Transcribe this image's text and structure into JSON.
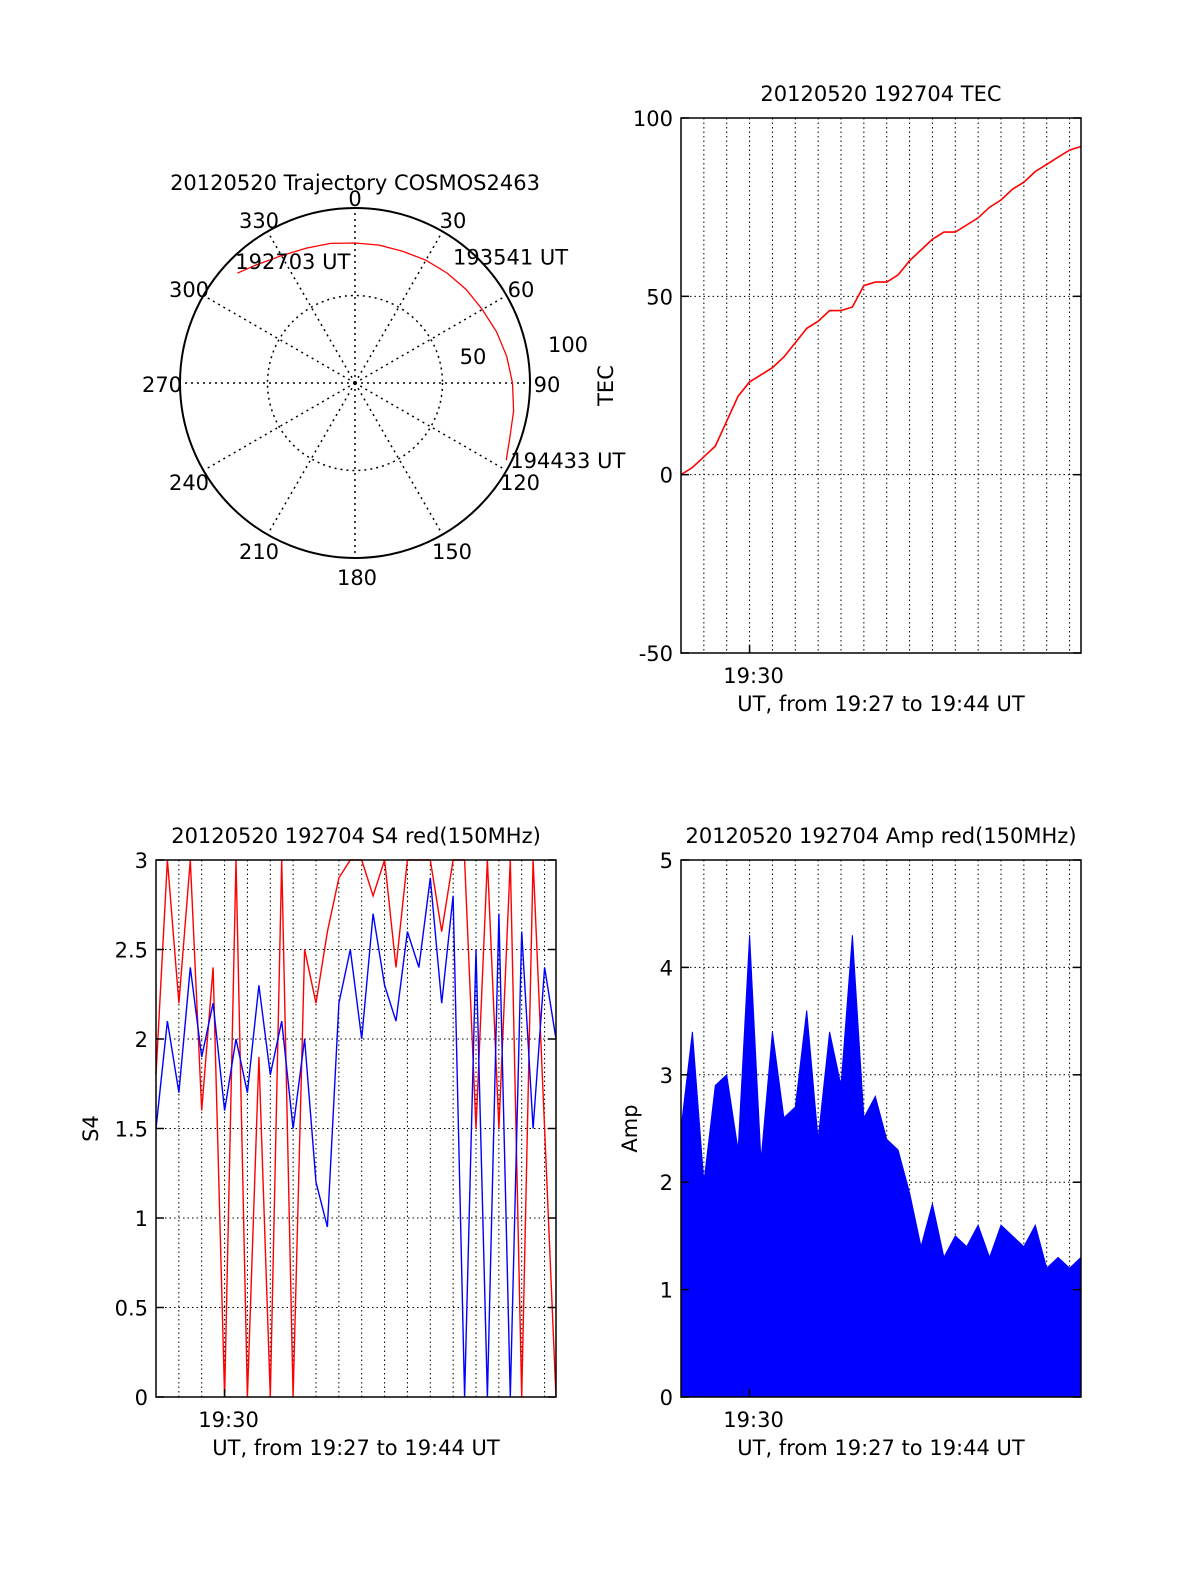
{
  "chart_data": [
    {
      "id": "trajectory",
      "type": "polar",
      "title": "20120520 Trajectory COSMOS2463",
      "angle_labels": [
        "0",
        "30",
        "60",
        "90",
        "120",
        "150",
        "180",
        "210",
        "240",
        "270",
        "300",
        "330"
      ],
      "angles": [
        0,
        30,
        60,
        90,
        120,
        150,
        180,
        210,
        240,
        270,
        300,
        330
      ],
      "radial_labels": [
        "50",
        "100"
      ],
      "radial_values": [
        50,
        100
      ],
      "r_range": [
        0,
        100
      ],
      "series": [
        {
          "color": "#ff0000",
          "azimuth": [
            313,
            320,
            330,
            340,
            350,
            0,
            10,
            20,
            30,
            40,
            50,
            60,
            70,
            80,
            90,
            100,
            110,
            117
          ],
          "radius": [
            92,
            88,
            84,
            82,
            81,
            80,
            80,
            80,
            81,
            82,
            83,
            84,
            86,
            88,
            90,
            92,
            94,
            97
          ]
        }
      ],
      "annotations": [
        {
          "text": "192703 UT",
          "az": 313,
          "r": 92
        },
        {
          "text": "193541 UT",
          "az": 42,
          "r": 82
        },
        {
          "text": "194433 UT",
          "az": 117,
          "r": 97
        }
      ]
    },
    {
      "id": "tec",
      "type": "line",
      "title": "20120520 192704 TEC",
      "xlabel": "UT, from 19:27 to 19:44 UT",
      "ylabel": "TEC",
      "x_unit": "minutes after 19:27 UT",
      "xlim": [
        0,
        17.5
      ],
      "ylim": [
        -50,
        100
      ],
      "yticks": [
        -50,
        0,
        50,
        100
      ],
      "xtick_label": "19:30",
      "series": [
        {
          "color": "#ff0000",
          "x": [
            0,
            0.5,
            1,
            1.5,
            2,
            2.5,
            3,
            3.5,
            4,
            4.5,
            5,
            5.5,
            6,
            6.5,
            7,
            7.5,
            8,
            8.5,
            9,
            9.5,
            10,
            10.5,
            11,
            11.5,
            12,
            12.5,
            13,
            13.5,
            14,
            14.5,
            15,
            15.5,
            16,
            16.5,
            17,
            17.5
          ],
          "y": [
            0,
            2,
            5,
            8,
            15,
            22,
            26,
            28,
            30,
            33,
            37,
            41,
            43,
            46,
            46,
            47,
            53,
            54,
            54,
            56,
            60,
            63,
            66,
            68,
            68,
            70,
            72,
            75,
            77,
            80,
            82,
            85,
            87,
            89,
            91,
            92
          ]
        }
      ]
    },
    {
      "id": "s4",
      "type": "line",
      "title": "20120520 192704 S4 red(150MHz)",
      "xlabel": "UT, from 19:27 to 19:44 UT",
      "ylabel": "S4",
      "x_unit": "minutes after 19:27 UT",
      "xlim": [
        0,
        17.5
      ],
      "ylim": [
        0,
        3
      ],
      "yticks": [
        0,
        0.5,
        1,
        1.5,
        2,
        2.5,
        3
      ],
      "ytick_labels": [
        "0",
        "0.5",
        "1",
        "1.5",
        "2",
        "2.5",
        "3"
      ],
      "xtick_label": "19:30",
      "series": [
        {
          "color": "#ff0000",
          "x": [
            0,
            0.5,
            1,
            1.5,
            2,
            2.5,
            3,
            3.5,
            4,
            4.5,
            5,
            5.5,
            6,
            6.5,
            7,
            7.5,
            8,
            8.5,
            9,
            9.5,
            10,
            10.5,
            11,
            11.5,
            12,
            12.5,
            13,
            13.5,
            14,
            14.5,
            15,
            15.5,
            16,
            16.5,
            17,
            17.5
          ],
          "y": [
            1.8,
            3,
            2.2,
            3,
            1.6,
            2.4,
            0,
            3,
            0,
            1.9,
            0,
            3,
            0,
            2.5,
            2.2,
            2.6,
            2.9,
            3,
            3,
            2.8,
            3,
            2.4,
            3,
            3,
            3,
            2.6,
            3,
            3,
            1.5,
            3,
            1.5,
            3,
            0,
            3,
            1.5,
            0
          ]
        },
        {
          "color": "#0000ff",
          "x": [
            0,
            0.5,
            1,
            1.5,
            2,
            2.5,
            3,
            3.5,
            4,
            4.5,
            5,
            5.5,
            6,
            6.5,
            7,
            7.5,
            8,
            8.5,
            9,
            9.5,
            10,
            10.5,
            11,
            11.5,
            12,
            12.5,
            13,
            13.5,
            14,
            14.5,
            15,
            15.5,
            16,
            16.5,
            17,
            17.5
          ],
          "y": [
            1.5,
            2.1,
            1.7,
            2.4,
            1.9,
            2.2,
            1.6,
            2.0,
            1.7,
            2.3,
            1.8,
            2.1,
            1.5,
            2.0,
            1.2,
            0.95,
            2.2,
            2.5,
            2.0,
            2.7,
            2.3,
            2.1,
            2.6,
            2.4,
            2.9,
            2.2,
            2.8,
            0,
            2.5,
            0,
            2.7,
            0,
            2.6,
            1.5,
            2.4,
            2.0
          ]
        }
      ]
    },
    {
      "id": "amp",
      "type": "area",
      "title": "20120520 192704 Amp red(150MHz)",
      "xlabel": "UT, from 19:27 to 19:44 UT",
      "ylabel": "Amp",
      "x_unit": "minutes after 19:27 UT",
      "xlim": [
        0,
        17.5
      ],
      "ylim": [
        0,
        5
      ],
      "yticks": [
        0,
        1,
        2,
        3,
        4,
        5
      ],
      "xtick_label": "19:30",
      "series": [
        {
          "color": "#0000ff",
          "x": [
            0,
            0.5,
            1,
            1.5,
            2,
            2.5,
            3,
            3.5,
            4,
            4.5,
            5,
            5.5,
            6,
            6.5,
            7,
            7.5,
            8,
            8.5,
            9,
            9.5,
            10,
            10.5,
            11,
            11.5,
            12,
            12.5,
            13,
            13.5,
            14,
            14.5,
            15,
            15.5,
            16,
            16.5,
            17,
            17.5
          ],
          "y": [
            2.5,
            3.4,
            2.0,
            2.9,
            3.0,
            2.3,
            4.3,
            2.2,
            3.4,
            2.6,
            2.7,
            3.6,
            2.4,
            3.4,
            2.9,
            4.3,
            2.6,
            2.8,
            2.4,
            2.3,
            1.9,
            1.4,
            1.8,
            1.3,
            1.5,
            1.4,
            1.6,
            1.3,
            1.6,
            1.5,
            1.4,
            1.6,
            1.2,
            1.3,
            1.2,
            1.3
          ]
        }
      ]
    }
  ]
}
